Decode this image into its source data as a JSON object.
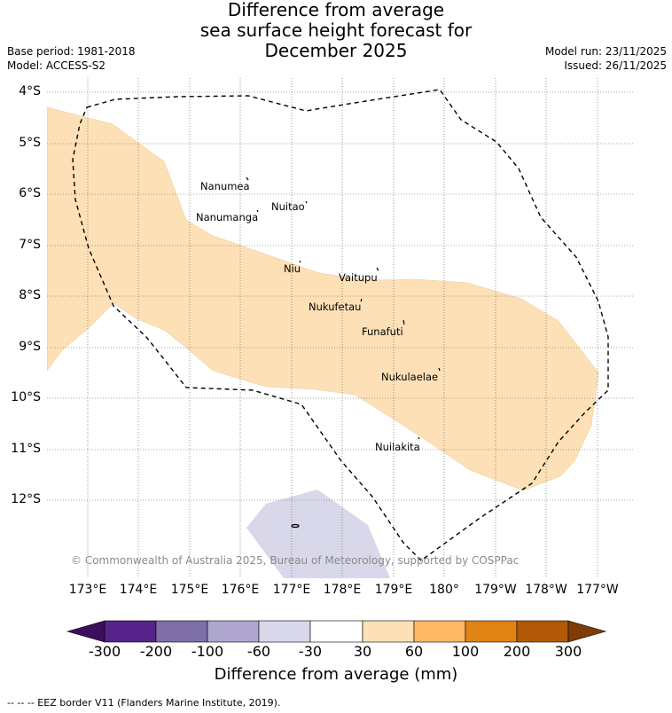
{
  "title": {
    "line1": "Difference from average",
    "line2": "sea surface height forecast for",
    "line3": "December 2025"
  },
  "meta": {
    "base_period": "Base period: 1981-2018",
    "model": "Model: ACCESS-S2",
    "model_run": "Model run: 23/11/2025",
    "issued": "Issued: 26/11/2025"
  },
  "axes": {
    "lat_labels": [
      "4°S",
      "5°S",
      "6°S",
      "7°S",
      "8°S",
      "9°S",
      "10°S",
      "11°S",
      "12°S"
    ],
    "lon_labels": [
      "173°E",
      "174°E",
      "175°E",
      "176°E",
      "177°E",
      "178°E",
      "179°E",
      "180°",
      "179°W",
      "178°W",
      "177°W"
    ]
  },
  "places": [
    {
      "name": "Nanumea"
    },
    {
      "name": "Nuitao"
    },
    {
      "name": "Nanumanga"
    },
    {
      "name": "Niu"
    },
    {
      "name": "Vaitupu"
    },
    {
      "name": "Nukufetau"
    },
    {
      "name": "Funafuti"
    },
    {
      "name": "Nukulaelae"
    },
    {
      "name": "Nuilakita"
    }
  ],
  "copyright": "© Commonwealth of Australia 2025, Bureau of Meteorology, supported by COSPPac",
  "colorbar": {
    "labels": [
      "-300",
      "-200",
      "-100",
      "-60",
      "-30",
      "30",
      "60",
      "100",
      "200",
      "300"
    ],
    "colors": [
      "#3b0f5e",
      "#55238a",
      "#7e6fa8",
      "#aea6cf",
      "#d8d8ea",
      "#ffffff",
      "#fde0b6",
      "#fdb863",
      "#e08214",
      "#b35806",
      "#7f3b08"
    ],
    "title": "Difference from average (mm)"
  },
  "footer": "--  --  -- EEZ border V11 (Flanders Marine Institute, 2019).",
  "colors": {
    "positive_fill": "#fde0b6",
    "negative_fill": "#d8d8ea",
    "grid": "#555555"
  }
}
